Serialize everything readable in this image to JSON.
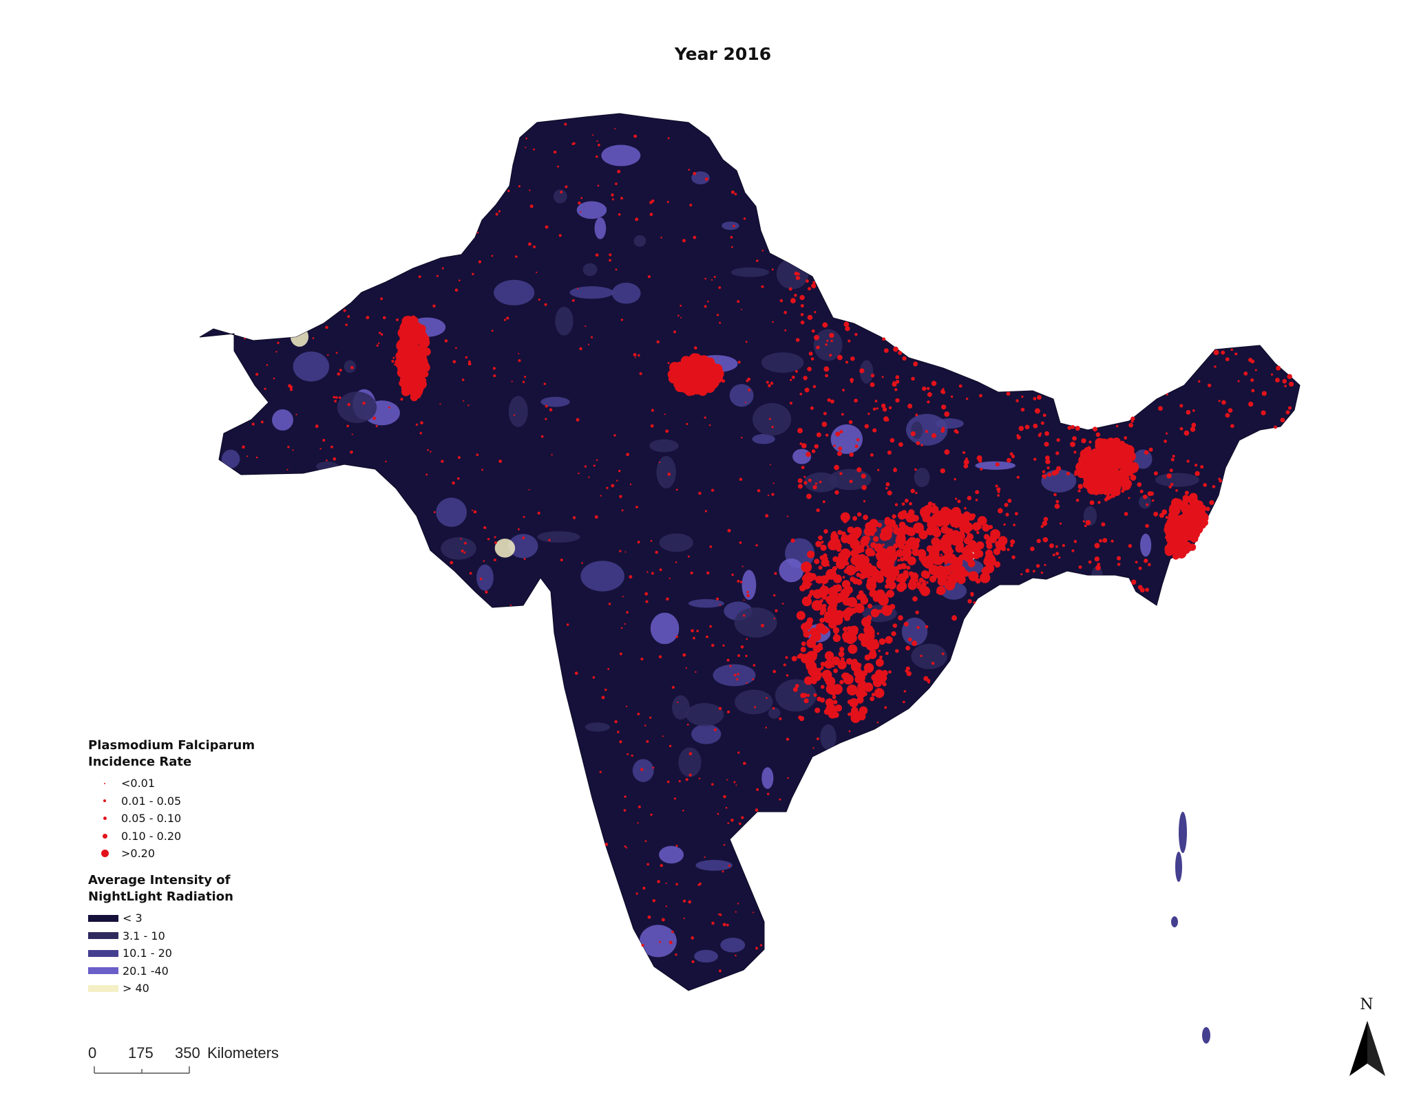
{
  "title": "Year 2016",
  "legend_incidence": {
    "title": "Plasmodium Falciparum\nIncidence Rate",
    "classes": [
      {
        "label": "<0.01"
      },
      {
        "label": "0.01 - 0.05"
      },
      {
        "label": "0.05 - 0.10"
      },
      {
        "label": "0.10 - 0.20"
      },
      {
        "label": ">0.20"
      }
    ],
    "dot_color": "#e3121a"
  },
  "legend_nightlight": {
    "title": "Average Intensity of\nNightLight Radiation",
    "classes": [
      {
        "label": "< 3",
        "color": "#15113a"
      },
      {
        "label": "3.1 - 10",
        "color": "#2f2a5e"
      },
      {
        "label": "10.1 - 20",
        "color": "#453f8f"
      },
      {
        "label": "20.1 -40",
        "color": "#6a5ec8"
      },
      {
        "label": "> 40",
        "color": "#f4efc4"
      }
    ]
  },
  "scale_bar": {
    "ticks": [
      "0",
      "175",
      "350"
    ],
    "unit": "Kilometers"
  },
  "north_arrow": {
    "label": "N",
    "icon": "north-arrow-icon"
  }
}
